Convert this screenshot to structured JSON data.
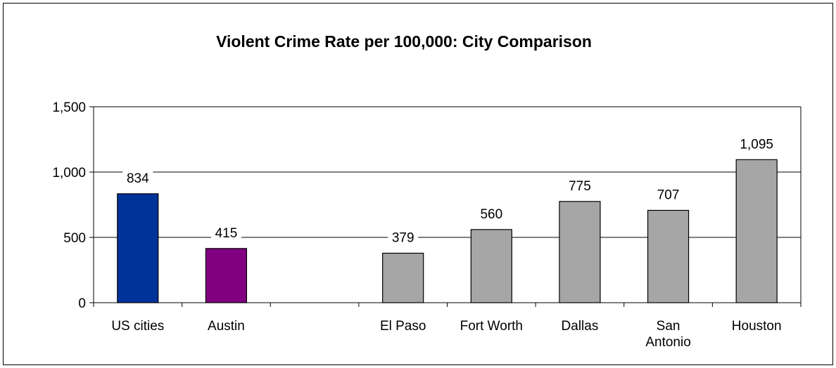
{
  "chart_data": {
    "type": "bar",
    "title": "Violent Crime Rate per 100,000: City Comparison",
    "xlabel": "",
    "ylabel": "",
    "ylim": [
      0,
      1500
    ],
    "yticks": [
      0,
      500,
      1000,
      1500
    ],
    "ytick_labels": [
      "0",
      "500",
      "1,000",
      "1,500"
    ],
    "grid": "horizontal major gridlines",
    "legend": "none",
    "categories": [
      {
        "label": "US cities",
        "lines": [
          "US cities"
        ]
      },
      {
        "label": "Austin",
        "lines": [
          "Austin"
        ]
      },
      {
        "label": "",
        "lines": []
      },
      {
        "label": "El Paso",
        "lines": [
          "El Paso"
        ]
      },
      {
        "label": "Fort Worth",
        "lines": [
          "Fort Worth"
        ]
      },
      {
        "label": "Dallas",
        "lines": [
          "Dallas"
        ]
      },
      {
        "label": "San Antonio",
        "lines": [
          "San",
          "Antonio"
        ]
      },
      {
        "label": "Houston",
        "lines": [
          "Houston"
        ]
      }
    ],
    "values": [
      834,
      415,
      null,
      379,
      560,
      775,
      707,
      1095
    ],
    "value_labels": [
      "834",
      "415",
      "",
      "379",
      "560",
      "775",
      "707",
      "1,095"
    ],
    "colors": [
      "#003399",
      "#800080",
      null,
      "#a6a6a6",
      "#a6a6a6",
      "#a6a6a6",
      "#a6a6a6",
      "#a6a6a6"
    ]
  }
}
